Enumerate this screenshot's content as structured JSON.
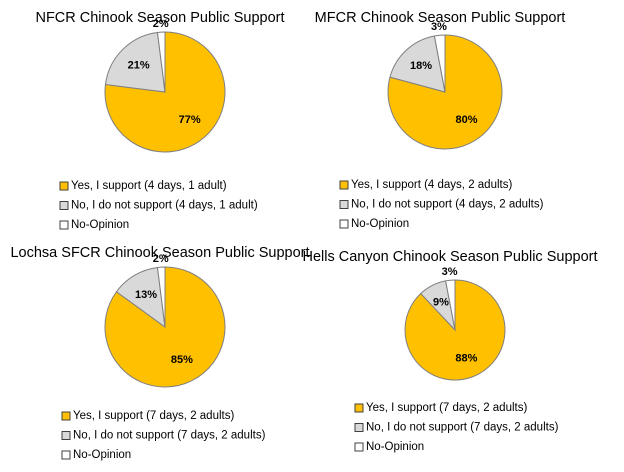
{
  "chart_data": [
    {
      "type": "pie",
      "title": "NFCR Chinook Season Public Support",
      "categories": [
        "Yes, I support (4 days, 1 adult)",
        "No, I do not support (4 days, 1 adult)",
        "No-Opinion"
      ],
      "values": [
        77,
        21,
        2
      ],
      "value_labels": [
        "77%",
        "21%",
        "2%"
      ],
      "colors": [
        "#FFC000",
        "#D9D9D9",
        "#FFFFFF"
      ]
    },
    {
      "type": "pie",
      "title": "MFCR Chinook Season Public Support",
      "categories": [
        "Yes, I support (4 days, 2 adults)",
        "No, I do not support (4 days, 2 adults)",
        "No-Opinion"
      ],
      "values": [
        80,
        18,
        3
      ],
      "value_labels": [
        "80%",
        "18%",
        "3%"
      ],
      "colors": [
        "#FFC000",
        "#D9D9D9",
        "#FFFFFF"
      ]
    },
    {
      "type": "pie",
      "title": "Lochsa SFCR Chinook Season Public Support",
      "categories": [
        "Yes, I support (7 days, 2 adults)",
        "No, I do not support (7 days, 2 adults)",
        "No-Opinion"
      ],
      "values": [
        85,
        13,
        2
      ],
      "value_labels": [
        "85%",
        "13%",
        "2%"
      ],
      "colors": [
        "#FFC000",
        "#D9D9D9",
        "#FFFFFF"
      ]
    },
    {
      "type": "pie",
      "title": "Hells Canyon Chinook Season Public Support",
      "categories": [
        "Yes, I support (7 days, 2 adults)",
        "No, I do not support (7 days, 2 adults)",
        "No-Opinion"
      ],
      "values": [
        88,
        9,
        3
      ],
      "value_labels": [
        "88%",
        "9%",
        "3%"
      ],
      "colors": [
        "#FFC000",
        "#D9D9D9",
        "#FFFFFF"
      ]
    }
  ]
}
